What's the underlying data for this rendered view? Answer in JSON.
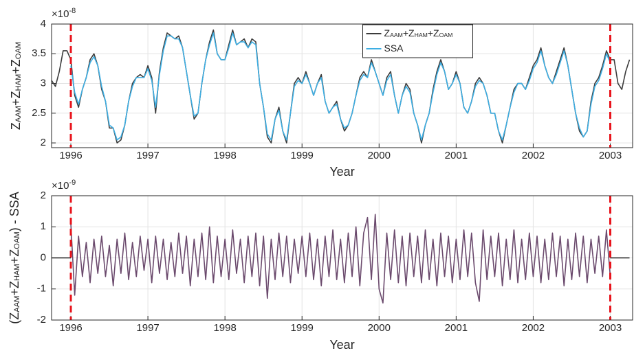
{
  "chart_data": [
    {
      "type": "line",
      "ylabel": [
        "Z",
        "AAM",
        "+Z",
        "HAM",
        "+Z",
        "OAM"
      ],
      "xlabel": "Year",
      "exponent": {
        "base": "×10",
        "power": "-8"
      },
      "x": [
        1995.75,
        1995.8,
        1995.85,
        1995.9,
        1995.95,
        1996,
        1996.05,
        1996.1,
        1996.15,
        1996.2,
        1996.25,
        1996.3,
        1996.35,
        1996.4,
        1996.45,
        1996.5,
        1996.55,
        1996.6,
        1996.65,
        1996.7,
        1996.75,
        1996.8,
        1996.85,
        1996.9,
        1996.95,
        1997,
        1997.05,
        1997.1,
        1997.15,
        1997.2,
        1997.25,
        1997.3,
        1997.35,
        1997.4,
        1997.45,
        1997.5,
        1997.55,
        1997.6,
        1997.65,
        1997.7,
        1997.75,
        1997.8,
        1997.85,
        1997.9,
        1997.95,
        1998,
        1998.05,
        1998.1,
        1998.15,
        1998.2,
        1998.25,
        1998.3,
        1998.35,
        1998.4,
        1998.45,
        1998.5,
        1998.55,
        1998.6,
        1998.65,
        1998.7,
        1998.75,
        1998.8,
        1998.85,
        1998.9,
        1998.95,
        1999,
        1999.05,
        1999.1,
        1999.15,
        1999.2,
        1999.25,
        1999.3,
        1999.35,
        1999.4,
        1999.45,
        1999.5,
        1999.55,
        1999.6,
        1999.65,
        1999.7,
        1999.75,
        1999.8,
        1999.85,
        1999.9,
        1999.95,
        2000,
        2000.05,
        2000.1,
        2000.15,
        2000.2,
        2000.25,
        2000.3,
        2000.35,
        2000.4,
        2000.45,
        2000.5,
        2000.55,
        2000.6,
        2000.65,
        2000.7,
        2000.75,
        2000.8,
        2000.85,
        2000.9,
        2000.95,
        2001,
        2001.05,
        2001.1,
        2001.15,
        2001.2,
        2001.25,
        2001.3,
        2001.35,
        2001.4,
        2001.45,
        2001.5,
        2001.55,
        2001.6,
        2001.65,
        2001.7,
        2001.75,
        2001.8,
        2001.85,
        2001.9,
        2001.95,
        2002,
        2002.05,
        2002.1,
        2002.15,
        2002.2,
        2002.25,
        2002.3,
        2002.35,
        2002.4,
        2002.45,
        2002.5,
        2002.55,
        2002.6,
        2002.65,
        2002.7,
        2002.75,
        2002.8,
        2002.85,
        2002.9,
        2002.95,
        2003,
        2003.05,
        2003.1,
        2003.15,
        2003.2,
        2003.25
      ],
      "xlim": [
        1995.75,
        2003.29
      ],
      "xticks": [
        1996,
        1997,
        1998,
        1999,
        2000,
        2001,
        2002,
        2003
      ],
      "ylim": [
        1.92,
        4
      ],
      "yticks": [
        2,
        2.5,
        3,
        3.5,
        4
      ],
      "grid": true,
      "legend": "north",
      "vlines": [
        1996,
        2003
      ],
      "vline_color": "#e8141c",
      "series": [
        {
          "name": [
            "Z",
            "AAM",
            "+Z",
            "HAM",
            "+Z",
            "OAM"
          ],
          "color": "#3c3c3c",
          "values": [
            3.05,
            2.95,
            3.2,
            3.55,
            3.55,
            3.4,
            2.8,
            2.6,
            2.9,
            3.1,
            3.4,
            3.5,
            3.3,
            2.9,
            2.7,
            2.25,
            2.25,
            2.0,
            2.05,
            2.3,
            2.7,
            3.0,
            3.1,
            3.15,
            3.1,
            3.3,
            3.1,
            2.5,
            3.2,
            3.6,
            3.85,
            3.8,
            3.75,
            3.8,
            3.6,
            3.2,
            2.8,
            2.4,
            2.5,
            3.0,
            3.4,
            3.7,
            3.9,
            3.5,
            3.4,
            3.4,
            3.65,
            3.9,
            3.65,
            3.7,
            3.75,
            3.6,
            3.75,
            3.7,
            3.0,
            2.6,
            2.1,
            2.0,
            2.4,
            2.6,
            2.2,
            2.0,
            2.5,
            3.0,
            3.1,
            3.0,
            3.2,
            3.0,
            2.8,
            3.0,
            3.15,
            2.7,
            2.5,
            2.6,
            2.7,
            2.4,
            2.2,
            2.3,
            2.5,
            2.8,
            3.1,
            3.2,
            3.1,
            3.4,
            3.2,
            3.0,
            2.8,
            3.1,
            3.2,
            2.8,
            2.5,
            2.8,
            3.0,
            2.9,
            2.5,
            2.3,
            2.0,
            2.3,
            2.5,
            2.9,
            3.2,
            3.4,
            3.2,
            2.9,
            3.0,
            3.2,
            3.0,
            2.6,
            2.5,
            2.7,
            3.0,
            3.1,
            3.0,
            2.8,
            2.5,
            2.5,
            2.2,
            2.0,
            2.3,
            2.6,
            2.9,
            3.0,
            3.0,
            2.9,
            3.1,
            3.3,
            3.4,
            3.6,
            3.3,
            3.1,
            3.0,
            3.2,
            3.4,
            3.6,
            3.3,
            2.9,
            2.5,
            2.2,
            2.1,
            2.2,
            2.7,
            3.0,
            3.1,
            3.3,
            3.55,
            3.4,
            3.4,
            3.0,
            2.9,
            3.2,
            3.4
          ]
        },
        {
          "name": [
            "SSA"
          ],
          "color": "#3daee3",
          "values": [
            null,
            null,
            null,
            null,
            null,
            3.3,
            2.85,
            2.65,
            2.9,
            3.1,
            3.35,
            3.45,
            3.3,
            2.95,
            2.7,
            2.3,
            2.25,
            2.05,
            2.1,
            2.3,
            2.7,
            2.95,
            3.1,
            3.1,
            3.1,
            3.25,
            3.05,
            2.6,
            3.15,
            3.55,
            3.8,
            3.8,
            3.75,
            3.75,
            3.6,
            3.2,
            2.8,
            2.45,
            2.5,
            3.0,
            3.4,
            3.65,
            3.85,
            3.5,
            3.4,
            3.4,
            3.6,
            3.85,
            3.65,
            3.7,
            3.7,
            3.6,
            3.7,
            3.65,
            3.0,
            2.6,
            2.15,
            2.05,
            2.4,
            2.55,
            2.2,
            2.05,
            2.5,
            2.95,
            3.05,
            3.0,
            3.15,
            3.0,
            2.8,
            3.0,
            3.1,
            2.7,
            2.5,
            2.6,
            2.65,
            2.4,
            2.25,
            2.3,
            2.5,
            2.8,
            3.05,
            3.15,
            3.1,
            3.35,
            3.2,
            3.0,
            2.8,
            3.05,
            3.15,
            2.8,
            2.5,
            2.8,
            2.95,
            2.85,
            2.5,
            2.3,
            2.05,
            2.3,
            2.5,
            2.85,
            3.15,
            3.35,
            3.2,
            2.9,
            3.0,
            3.15,
            3.0,
            2.6,
            2.5,
            2.7,
            2.95,
            3.05,
            3.0,
            2.8,
            2.5,
            2.5,
            2.2,
            2.05,
            2.3,
            2.6,
            2.85,
            3.0,
            3.0,
            2.9,
            3.05,
            3.25,
            3.35,
            3.55,
            3.3,
            3.1,
            3.0,
            3.15,
            3.35,
            3.55,
            3.3,
            2.9,
            2.5,
            2.25,
            2.1,
            2.2,
            2.65,
            2.95,
            3.05,
            3.25,
            3.5,
            3.35,
            null,
            null,
            null,
            null,
            null
          ]
        }
      ]
    },
    {
      "type": "line",
      "ylabel": [
        "(Z",
        "AAM",
        "+Z",
        "HAM",
        "+Z",
        "OAM",
        ") - SSA"
      ],
      "xlabel": "Year",
      "exponent": {
        "base": "×10",
        "power": "-9"
      },
      "x": [
        1995.75,
        1995.8,
        1995.85,
        1995.9,
        1995.95,
        1996,
        1996.05,
        1996.1,
        1996.15,
        1996.2,
        1996.25,
        1996.3,
        1996.35,
        1996.4,
        1996.45,
        1996.5,
        1996.55,
        1996.6,
        1996.65,
        1996.7,
        1996.75,
        1996.8,
        1996.85,
        1996.9,
        1996.95,
        1997,
        1997.05,
        1997.1,
        1997.15,
        1997.2,
        1997.25,
        1997.3,
        1997.35,
        1997.4,
        1997.45,
        1997.5,
        1997.55,
        1997.6,
        1997.65,
        1997.7,
        1997.75,
        1997.8,
        1997.85,
        1997.9,
        1997.95,
        1998,
        1998.05,
        1998.1,
        1998.15,
        1998.2,
        1998.25,
        1998.3,
        1998.35,
        1998.4,
        1998.45,
        1998.5,
        1998.55,
        1998.6,
        1998.65,
        1998.7,
        1998.75,
        1998.8,
        1998.85,
        1998.9,
        1998.95,
        1999,
        1999.05,
        1999.1,
        1999.15,
        1999.2,
        1999.25,
        1999.3,
        1999.35,
        1999.4,
        1999.45,
        1999.5,
        1999.55,
        1999.6,
        1999.65,
        1999.7,
        1999.75,
        1999.8,
        1999.85,
        1999.9,
        1999.95,
        2000,
        2000.05,
        2000.1,
        2000.15,
        2000.2,
        2000.25,
        2000.3,
        2000.35,
        2000.4,
        2000.45,
        2000.5,
        2000.55,
        2000.6,
        2000.65,
        2000.7,
        2000.75,
        2000.8,
        2000.85,
        2000.9,
        2000.95,
        2001,
        2001.05,
        2001.1,
        2001.15,
        2001.2,
        2001.25,
        2001.3,
        2001.35,
        2001.4,
        2001.45,
        2001.5,
        2001.55,
        2001.6,
        2001.65,
        2001.7,
        2001.75,
        2001.8,
        2001.85,
        2001.9,
        2001.95,
        2002,
        2002.05,
        2002.1,
        2002.15,
        2002.2,
        2002.25,
        2002.3,
        2002.35,
        2002.4,
        2002.45,
        2002.5,
        2002.55,
        2002.6,
        2002.65,
        2002.7,
        2002.75,
        2002.8,
        2002.85,
        2002.9,
        2002.95,
        2003,
        2003.05,
        2003.1,
        2003.15,
        2003.2,
        2003.25
      ],
      "xlim": [
        1995.75,
        2003.29
      ],
      "xticks": [
        1996,
        1997,
        1998,
        1999,
        2000,
        2001,
        2002,
        2003
      ],
      "ylim": [
        -2,
        2
      ],
      "yticks": [
        -2,
        -1,
        0,
        1,
        2
      ],
      "grid": true,
      "vlines": [
        1996,
        2003
      ],
      "vline_color": "#e8141c",
      "series": [
        {
          "color": "#1a1a1a",
          "values": [
            0,
            0,
            0,
            0,
            0,
            0,
            null,
            null,
            null,
            null,
            null,
            null,
            null,
            null,
            null,
            null,
            null,
            null,
            null,
            null,
            null,
            null,
            null,
            null,
            null,
            null,
            null,
            null,
            null,
            null,
            null,
            null,
            null,
            null,
            null,
            null,
            null,
            null,
            null,
            null,
            null,
            null,
            null,
            null,
            null,
            null,
            null,
            null,
            null,
            null,
            null,
            null,
            null,
            null,
            null,
            null,
            null,
            null,
            null,
            null,
            null,
            null,
            null,
            null,
            null,
            null,
            null,
            null,
            null,
            null,
            null,
            null,
            null,
            null,
            null,
            null,
            null,
            null,
            null,
            null,
            null,
            null,
            null,
            null,
            null,
            null,
            null,
            null,
            null,
            null,
            null,
            null,
            null,
            null,
            null,
            null,
            null,
            null,
            null,
            null,
            null,
            null,
            null,
            null,
            null,
            null,
            null,
            null,
            null,
            null,
            null,
            null,
            null,
            null,
            null,
            null,
            null,
            null,
            null,
            null,
            null,
            null,
            null,
            null,
            null,
            null,
            null,
            null,
            null,
            null,
            null,
            null,
            null,
            null,
            null,
            null,
            null,
            null,
            null,
            null,
            null,
            null,
            null,
            null,
            null,
            0,
            0,
            0,
            0,
            0,
            0
          ]
        },
        {
          "color": "#6b4a6d",
          "values": [
            null,
            null,
            null,
            null,
            null,
            1.1,
            -1.2,
            0.7,
            -0.6,
            0.5,
            -0.8,
            0.6,
            -0.5,
            0.7,
            -0.6,
            0.4,
            -0.9,
            0.6,
            -0.5,
            0.8,
            -0.7,
            0.5,
            -0.6,
            0.7,
            -0.4,
            0.6,
            -0.8,
            0.7,
            -0.5,
            0.6,
            -0.7,
            0.5,
            -0.6,
            0.8,
            -0.5,
            0.7,
            -0.9,
            0.6,
            -0.6,
            0.8,
            -0.7,
            1.0,
            -0.8,
            0.7,
            -0.6,
            0.6,
            -0.7,
            0.9,
            -0.5,
            0.6,
            -0.8,
            0.7,
            -0.6,
            0.8,
            -0.9,
            0.7,
            -1.3,
            0.6,
            -0.7,
            0.8,
            -0.6,
            0.7,
            -0.8,
            0.6,
            -0.5,
            0.7,
            -0.6,
            0.8,
            -0.7,
            0.6,
            -0.9,
            0.7,
            -0.6,
            0.9,
            -0.7,
            0.6,
            -0.8,
            0.8,
            -0.6,
            1.0,
            -0.9,
            0.8,
            1.3,
            -0.7,
            1.4,
            -1.0,
            -1.45,
            0.8,
            -0.7,
            0.9,
            -0.8,
            0.7,
            -0.9,
            0.8,
            -0.6,
            0.7,
            -0.8,
            0.9,
            -0.7,
            0.6,
            -0.9,
            0.8,
            -0.6,
            0.7,
            -0.8,
            0.6,
            -0.7,
            0.9,
            -0.6,
            0.8,
            -0.8,
            -1.4,
            0.9,
            -0.7,
            0.7,
            -0.6,
            0.8,
            -0.9,
            0.6,
            -0.7,
            0.9,
            -0.8,
            0.6,
            -0.7,
            0.8,
            -0.6,
            0.7,
            -0.8,
            0.6,
            -0.7,
            0.8,
            -0.6,
            0.7,
            -0.9,
            0.6,
            -0.7,
            0.8,
            -0.6,
            0.7,
            -0.8,
            0.6,
            -0.5,
            0.7,
            -0.6,
            0.9,
            -0.6,
            null,
            null,
            null,
            null,
            null
          ]
        }
      ]
    }
  ]
}
